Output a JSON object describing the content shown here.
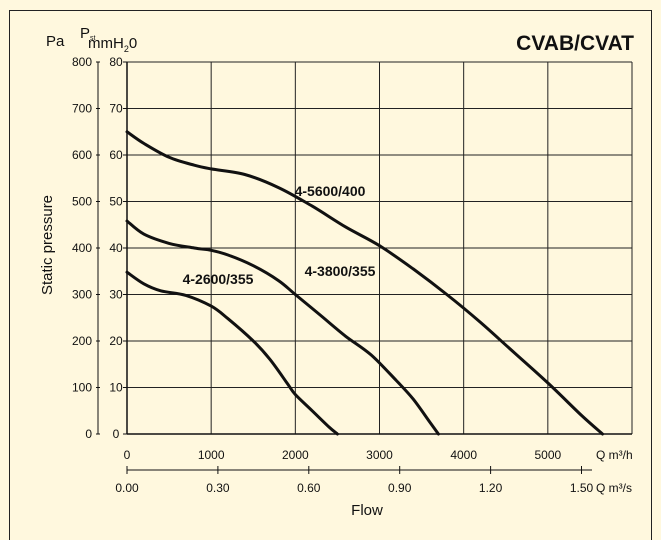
{
  "chart_data": {
    "type": "line",
    "title": "CVAB/CVAT",
    "ylabel": "Static pressure",
    "xlabel": "Flow",
    "y_left_unit": "Pa",
    "y_right_unit_sym": "P",
    "y_right_unit_sub": "st",
    "y_right_unit_rest": "mmH",
    "y_right_unit_sub2": "2",
    "y_right_unit_end": "0",
    "x_unit": "Q m³/h",
    "x2_unit": "Q m³/s",
    "xlim": [
      0,
      6000
    ],
    "ylim": [
      0,
      800
    ],
    "grid": true,
    "yticks_pa": [
      "800",
      "700",
      "600",
      "500",
      "400",
      "300",
      "200",
      "100",
      "0"
    ],
    "yticks_pa_values": [
      800,
      700,
      600,
      500,
      400,
      300,
      200,
      100,
      0
    ],
    "yticks_mm": [
      "80",
      "70",
      "60",
      "50",
      "40",
      "30",
      "20",
      "10",
      "0"
    ],
    "xticks": [
      "0",
      "1000",
      "2000",
      "3000",
      "4000",
      "5000"
    ],
    "xticks_values": [
      0,
      1000,
      2000,
      3000,
      4000,
      5000
    ],
    "x2ticks": [
      "0.00",
      "0.30",
      "0.60",
      "0.90",
      "1.20",
      "1.50"
    ],
    "x2ticks_values": [
      0,
      0.3,
      0.6,
      0.9,
      1.2,
      1.5
    ],
    "series": [
      {
        "name": "4-5600/400",
        "x": [
          0,
          200,
          500,
          800,
          1000,
          1400,
          1800,
          2200,
          2600,
          3000,
          3400,
          3800,
          4200,
          4600,
          5000,
          5400,
          5650
        ],
        "y": [
          650,
          625,
          595,
          578,
          570,
          558,
          530,
          490,
          445,
          405,
          355,
          300,
          240,
          175,
          110,
          40,
          0
        ]
      },
      {
        "name": "4-3800/355",
        "x": [
          0,
          200,
          500,
          800,
          1000,
          1200,
          1500,
          1800,
          2000,
          2300,
          2600,
          2900,
          3200,
          3400,
          3600,
          3700
        ],
        "y": [
          458,
          430,
          410,
          400,
          395,
          385,
          362,
          330,
          300,
          255,
          210,
          170,
          115,
          75,
          25,
          0
        ]
      },
      {
        "name": "4-2600/355",
        "x": [
          0,
          200,
          400,
          700,
          1000,
          1200,
          1500,
          1700,
          1900,
          2000,
          2200,
          2400,
          2500
        ],
        "y": [
          348,
          323,
          308,
          298,
          275,
          248,
          200,
          160,
          110,
          85,
          50,
          15,
          0
        ]
      }
    ]
  }
}
